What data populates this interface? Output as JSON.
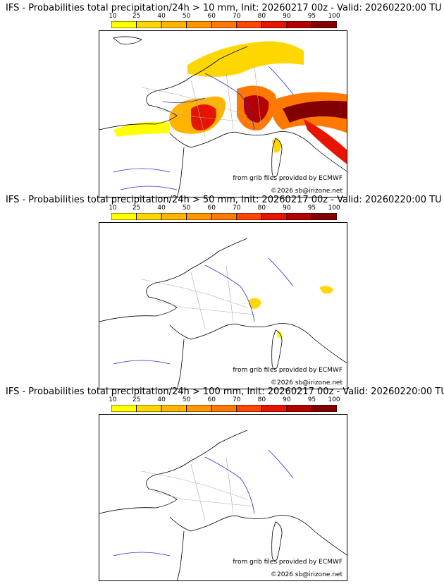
{
  "colorbar": {
    "ticks": [
      "10",
      "25",
      "40",
      "50",
      "60",
      "70",
      "80",
      "90",
      "95",
      "100"
    ],
    "colors": [
      "#ffff00",
      "#ffd700",
      "#ffb400",
      "#ff9600",
      "#ff7800",
      "#ff4600",
      "#e61400",
      "#b40000",
      "#820000"
    ],
    "outline": "#000000"
  },
  "map": {
    "credit_grib": "from grib files provided by ECMWF",
    "credit_copyright": "©2026 sb@irizone.net",
    "colors": {
      "coast": "#000000",
      "rivers": "#2b2bdc",
      "borders": "#aaaaaa"
    }
  },
  "panels": [
    {
      "title": "IFS - Probabilities total precipitation/24h > 10 mm, Init: 20260217 00z - Valid: 20260220:00 TU"
    },
    {
      "title": "IFS - Probabilities total precipitation/24h > 50 mm, Init: 20260217 00z - Valid: 20260220:00 TU"
    },
    {
      "title": "IFS - Probabilities total precipitation/24h > 100 mm, Init: 20260217 00z - Valid: 20260220:00 TU"
    }
  ]
}
